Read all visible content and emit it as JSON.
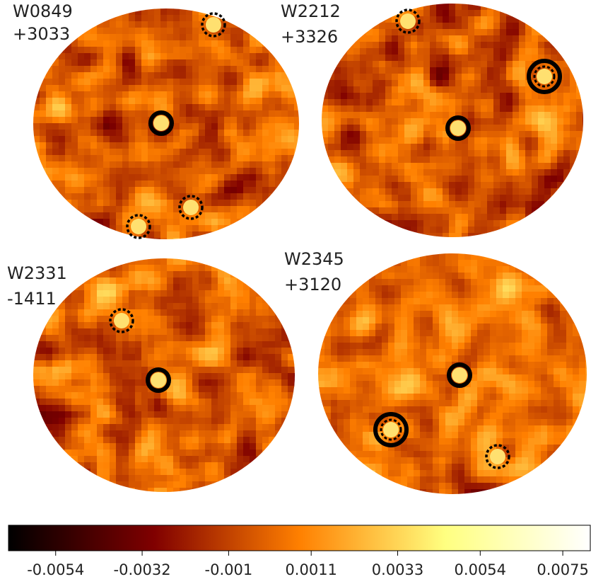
{
  "panels": [
    {
      "label": [
        "W0849",
        "+3033"
      ]
    },
    {
      "label": [
        "W2212",
        "+3326"
      ]
    },
    {
      "label": [
        "W2331",
        "-1411"
      ]
    },
    {
      "label": [
        "W2345",
        "+3120"
      ]
    }
  ],
  "colorbar": {
    "clim": [
      -0.0066,
      0.0082
    ],
    "ticks": [
      -0.0054,
      -0.0032,
      -0.001,
      0.0011,
      0.0033,
      0.0054,
      0.0075
    ]
  }
}
